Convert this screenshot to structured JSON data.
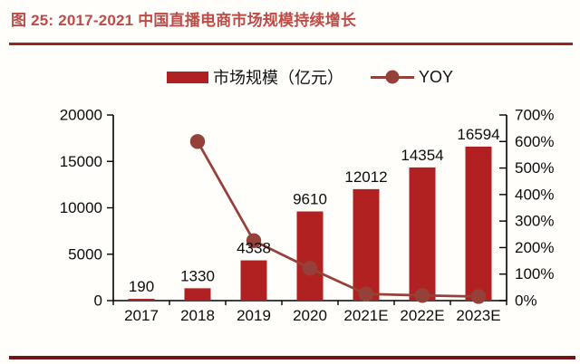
{
  "figure": {
    "title": "图 25:  2017-2021 中国直播电商市场规模持续增长",
    "title_color": "#bf4b47",
    "top_rule_color": "#9b2423",
    "bottom_rule_color": "#731418"
  },
  "legend": {
    "items": [
      {
        "label": "市场规模（亿元）",
        "marker": "bar-swatch",
        "color": "#b22121"
      },
      {
        "label": "YOY",
        "marker": "line-dot-swatch",
        "color": "#954038"
      }
    ]
  },
  "chart_data": {
    "type": "bar",
    "subtype": "bar-line combo with dual axes",
    "title": "2017-2021 中国直播电商市场规模持续增长",
    "categories": [
      "2017",
      "2018",
      "2019",
      "2020",
      "2021E",
      "2022E",
      "2023E"
    ],
    "series": [
      {
        "name": "市场规模（亿元）",
        "type": "bar",
        "axis": "left",
        "color": "#b22121",
        "values": [
          190,
          1330,
          4338,
          9610,
          12012,
          14354,
          16594
        ],
        "data_labels": [
          "190",
          "1330",
          "4338",
          "9610",
          "12012",
          "14354",
          "16594"
        ]
      },
      {
        "name": "YOY",
        "type": "line",
        "axis": "right",
        "color": "#954038",
        "values": [
          null,
          600,
          226,
          122,
          25,
          19.5,
          15.6
        ]
      }
    ],
    "left_axis": {
      "min": 0,
      "max": 20000,
      "step": 5000,
      "tick_labels": [
        "0",
        "5000",
        "10000",
        "15000",
        "20000"
      ]
    },
    "right_axis": {
      "min": 0,
      "max": 700,
      "step": 100,
      "tick_labels": [
        "0%",
        "100%",
        "200%",
        "300%",
        "400%",
        "500%",
        "600%",
        "700%"
      ]
    },
    "grid": false,
    "legend_position": "top"
  }
}
